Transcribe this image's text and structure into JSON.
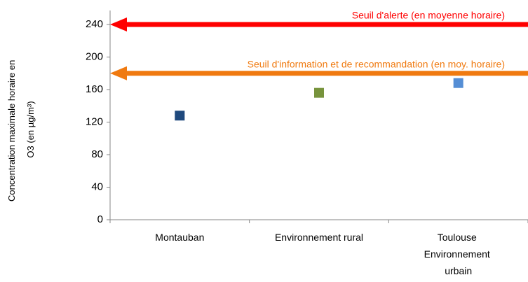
{
  "chart_data": {
    "type": "scatter",
    "y_label": "Concentration maximale horaire en O3 (en µg/m³)",
    "categories": [
      "Montauban",
      "Environnement rural",
      "Toulouse Environnement urbain"
    ],
    "values": [
      128,
      156,
      168
    ],
    "colors": [
      "#1f497d",
      "#77933c",
      "#558ed5"
    ],
    "ylim": [
      0,
      240
    ],
    "yticks": [
      0,
      40,
      80,
      120,
      160,
      200,
      240
    ],
    "annotations": [
      {
        "label": "Seuil d'alerte (en moyenne horaire)",
        "value": 240,
        "color": "#ff0000"
      },
      {
        "label": "Seuil d'information et de recommandation (en moy. horaire)",
        "value": 180,
        "color": "#f07a10"
      }
    ]
  }
}
